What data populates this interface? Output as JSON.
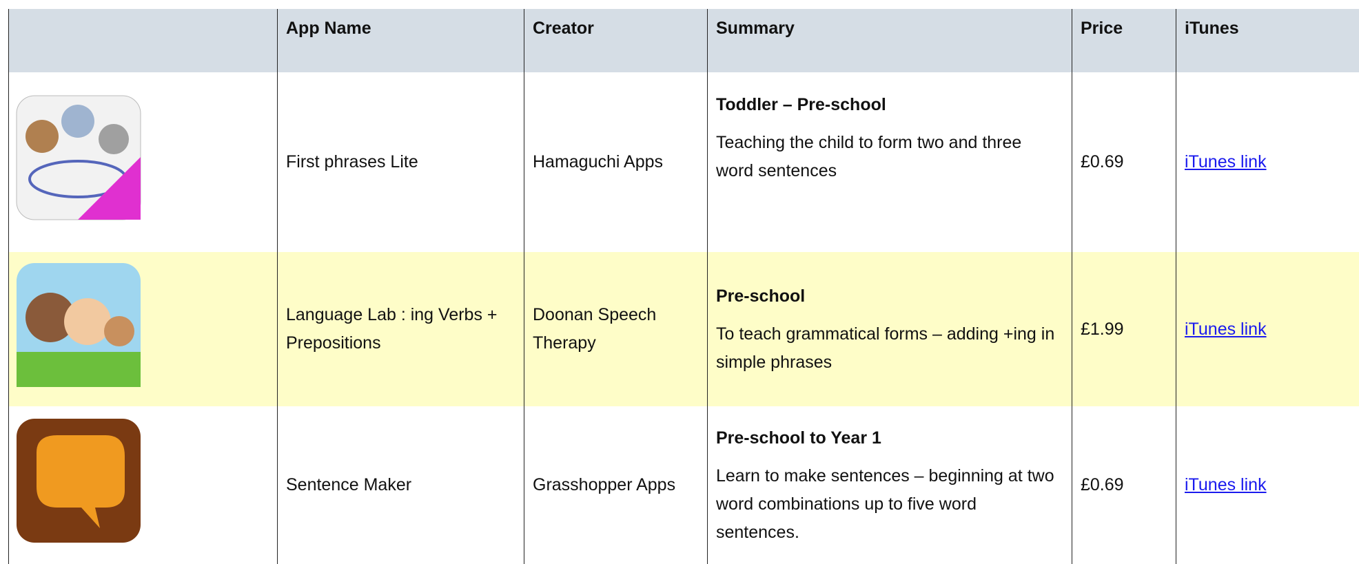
{
  "table": {
    "header": [
      "App Name",
      "Creator",
      "Summary",
      "Price",
      "iTunes"
    ],
    "rows": [
      {
        "app_name": "First phrases Lite",
        "creator": "Hamaguchi Apps",
        "level": "Toddler – Pre-school",
        "summary": "Teaching the child to form two and three word sentences",
        "price": "£0.69",
        "link": "iTunes link"
      },
      {
        "app_name": "Language Lab : ing Verbs + Prepositions",
        "creator": "Doonan Speech Therapy",
        "level": "Pre-school",
        "summary": "To teach grammatical forms – adding +ing in simple phrases",
        "price": "£1.99",
        "link": "iTunes link"
      },
      {
        "app_name": "Sentence Maker",
        "creator": "Grasshopper Apps",
        "level": "Pre-school to Year 1",
        "summary": "Learn to make sentences – beginning at two word combinations up to five word sentences.",
        "price": "£0.69",
        "link": "iTunes link"
      }
    ]
  }
}
